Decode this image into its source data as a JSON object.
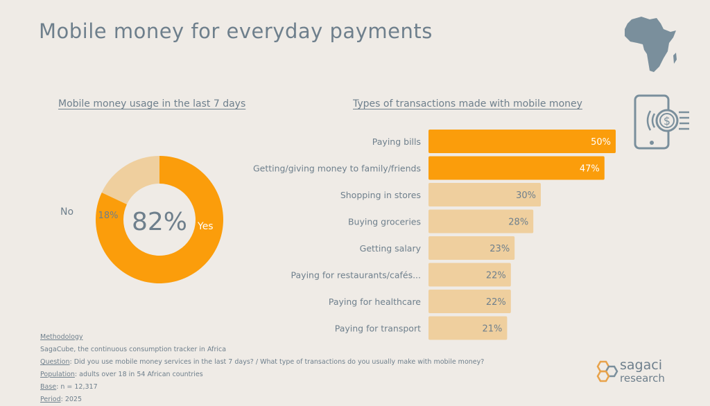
{
  "title": "Mobile money for everyday payments",
  "donut": {
    "subtitle": "Mobile money usage in the last 7 days",
    "center_label": "82%",
    "yes_label": "Yes",
    "no_label": "No",
    "no_value_label": "18%"
  },
  "bars": {
    "subtitle": "Types of transactions made with mobile money"
  },
  "chart_data": [
    {
      "type": "pie",
      "title": "Mobile money usage in the last 7 days",
      "categories": [
        "Yes",
        "No"
      ],
      "values": [
        82,
        18
      ],
      "labels": [
        "82%",
        "18%"
      ]
    },
    {
      "type": "bar",
      "orientation": "horizontal",
      "title": "Types of transactions made with mobile money",
      "categories": [
        "Paying bills",
        "Getting/giving money to family/friends",
        "Shopping in stores",
        "Buying groceries",
        "Getting salary",
        "Paying for restaurants/cafés...",
        "Paying for healthcare",
        "Paying for transport"
      ],
      "values": [
        50,
        47,
        30,
        28,
        23,
        22,
        22,
        21
      ],
      "labels": [
        "50%",
        "47%",
        "30%",
        "28%",
        "23%",
        "22%",
        "22%",
        "21%"
      ],
      "highlighted": [
        true,
        true,
        false,
        false,
        false,
        false,
        false,
        false
      ],
      "xlim": [
        0,
        50
      ]
    }
  ],
  "colors": {
    "accent": "#fb9d0b",
    "light": "#efcf9e",
    "text": "#6e7f8c",
    "background": "#efebe6"
  },
  "footer": {
    "methodology_label": "Methodology",
    "methodology_text": "SagaCube, the continuous consumption tracker in Africa",
    "question_label": "Question",
    "question_text": ": Did you use mobile money services in the last 7 days? / What type of transactions do you usually make with mobile money?",
    "population_label": "Population",
    "population_text": ": adults over 18 in 54 African countries",
    "base_label": "Base",
    "base_text": ": n = 12,317",
    "period_label": "Period",
    "period_text": ": 2025"
  },
  "logo": {
    "line1": "sagaci",
    "line2": "research"
  },
  "icons": {
    "map": "africa-map-icon",
    "payment": "mobile-payment-icon"
  }
}
